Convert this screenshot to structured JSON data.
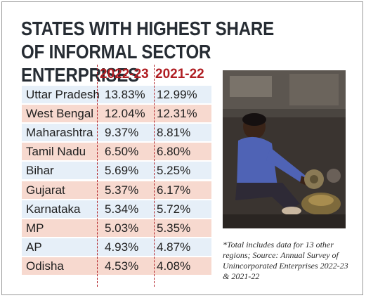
{
  "chart_data": {
    "type": "table",
    "title": "STATES WITH HIGHEST SHARE OF INFORMAL SECTOR ENTERPRISES",
    "columns": [
      "2022-23",
      "2021-22"
    ],
    "rows": [
      {
        "state": "Uttar Pradesh",
        "v2022_23": "13.83%",
        "v2021_22": "12.99%",
        "shade": "blue"
      },
      {
        "state": "West Bengal",
        "v2022_23": "12.04%",
        "v2021_22": "12.31%",
        "shade": "pink"
      },
      {
        "state": "Maharashtra",
        "v2022_23": "9.37%",
        "v2021_22": "8.81%",
        "shade": "blue"
      },
      {
        "state": "Tamil Nadu",
        "v2022_23": "6.50%",
        "v2021_22": "6.80%",
        "shade": "pink"
      },
      {
        "state": "Bihar",
        "v2022_23": "5.69%",
        "v2021_22": "5.25%",
        "shade": "blue"
      },
      {
        "state": "Gujarat",
        "v2022_23": "5.37%",
        "v2021_22": "6.17%",
        "shade": "pink"
      },
      {
        "state": "Karnataka",
        "v2022_23": "5.34%",
        "v2021_22": "5.72%",
        "shade": "blue"
      },
      {
        "state": "MP",
        "v2022_23": "5.03%",
        "v2021_22": "5.35%",
        "shade": "pink"
      },
      {
        "state": "AP",
        "v2022_23": "4.93%",
        "v2021_22": "4.87%",
        "shade": "blue"
      },
      {
        "state": "Odisha",
        "v2022_23": "4.53%",
        "v2021_22": "4.08%",
        "shade": "pink"
      }
    ],
    "note": "*Total includes data for 13 other regions; Source: Annual Survey of Unincorporated Enterprises 2022-23 & 2021-22"
  },
  "colors": {
    "title": "#262c33",
    "header": "#b01e23",
    "row_blue": "#e6eff8",
    "row_pink": "#f7d9cf"
  }
}
